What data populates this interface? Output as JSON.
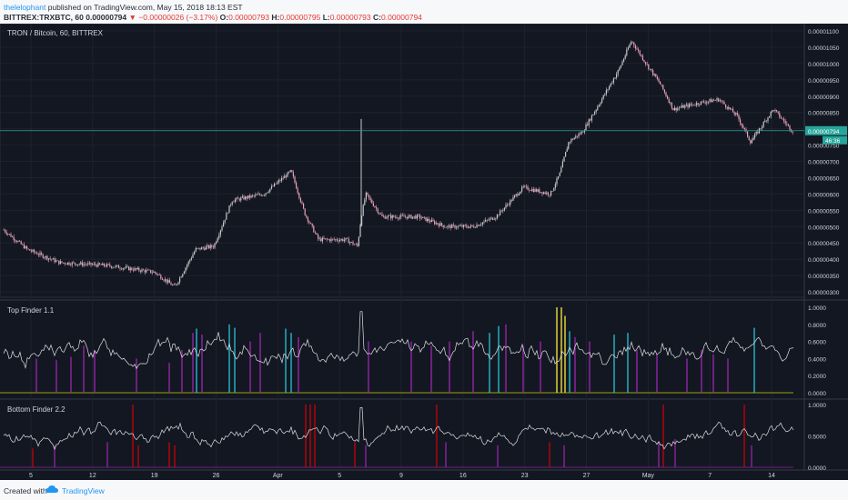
{
  "header": {
    "author": "thelelophant",
    "published_text": " published on TradingView.com, May 15, 2018 18:13 EST",
    "symbol": "BITTREX:TRXBTC, 60",
    "last": "0.00000794",
    "change_arrow": "▼",
    "change": "−0.00000026 (−3.17%)",
    "open_label": "O:",
    "open": "0.00000793",
    "high_label": "H:",
    "high": "0.00000795",
    "low_label": "L:",
    "low": "0.00000793",
    "close_label": "C:",
    "close": "0.00000794"
  },
  "main_pane": {
    "title": "TRON / Bitcoin, 60, BITTREX",
    "price_ticks": [
      "0.00001100",
      "0.00001050",
      "0.00001000",
      "0.00000950",
      "0.00000900",
      "0.00000850",
      "0.00000800",
      "0.00000750",
      "0.00000700",
      "0.00000650",
      "0.00000600",
      "0.00000550",
      "0.00000500",
      "0.00000450",
      "0.00000400",
      "0.00000350",
      "0.00000300"
    ],
    "last_price_badge": "0.00000794",
    "countdown_badge": "46:36"
  },
  "top_finder": {
    "title": "Top Finder 1.1",
    "ticks": [
      "1.0000",
      "0.8000",
      "0.6000",
      "0.4000",
      "0.2000",
      "0.0000"
    ]
  },
  "bottom_finder": {
    "title": "Bottom Finder 2.2",
    "ticks": [
      "1.0000",
      "0.5000",
      "0.0000"
    ]
  },
  "time_axis": {
    "labels": [
      "5",
      "12",
      "19",
      "26",
      "Apr",
      "5",
      "9",
      "16",
      "23",
      "27",
      "May",
      "7",
      "14"
    ]
  },
  "footer": {
    "created_with": "Created with",
    "brand": "TradingView"
  },
  "colors": {
    "background": "#131722",
    "candle_up": "#c8c8c8",
    "candle_down": "#e8a0b8",
    "last_price": "#26a69a",
    "top_marker_purple": "#9c27b0",
    "top_marker_cyan": "#26c6da",
    "top_marker_yellow": "#ffeb3b",
    "bottom_marker_red": "#d50000",
    "bottom_marker_purple": "#9c27b0"
  }
}
